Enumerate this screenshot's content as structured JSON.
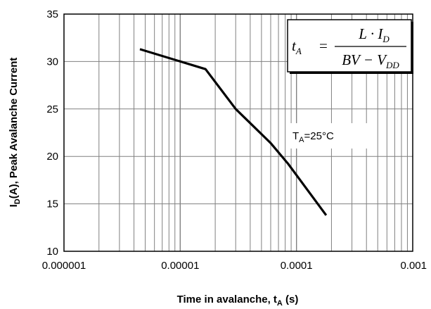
{
  "chart_data": {
    "type": "line",
    "xscale": "log",
    "xlim": [
      1e-06,
      0.001
    ],
    "ylim": [
      10,
      35
    ],
    "xlabel": {
      "main": "Time in avalanche, t",
      "sub": "A",
      "tail": " (s)"
    },
    "ylabel": {
      "lead": "I",
      "sub": "D",
      "main": "(A), Peak Avalanche Current"
    },
    "x_tick_labels": [
      "0.000001",
      "0.00001",
      "0.0001",
      "0.001"
    ],
    "x_ticks": [
      1e-06,
      1e-05,
      0.0001,
      0.001
    ],
    "y_tick_labels": [
      "10",
      "15",
      "20",
      "25",
      "30",
      "35"
    ],
    "y_ticks": [
      10,
      15,
      20,
      25,
      30,
      35
    ],
    "grid": true,
    "series": [
      {
        "x": [
          4.5e-06,
          1.65e-05,
          3e-05,
          6e-05,
          8.5e-05,
          0.00018
        ],
        "y": [
          31.3,
          29.2,
          25.0,
          21.4,
          19.2,
          13.8
        ]
      }
    ],
    "annotation": {
      "main": "T",
      "sub": "A",
      "tail": "=25°C"
    },
    "formula": {
      "lhs": "t",
      "lhs_sub": "A",
      "equals": "=",
      "numerator": "L · I",
      "numerator_sub": "D",
      "denominator": "BV − V",
      "denominator_sub": "DD"
    }
  }
}
